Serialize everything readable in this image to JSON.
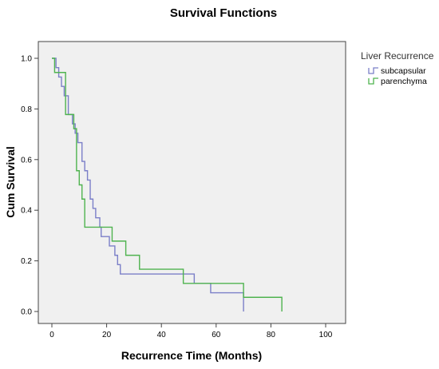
{
  "chart_data": {
    "type": "line",
    "title": "Survival Functions",
    "xlabel": "Recurrence Time (Months)",
    "ylabel": "Cum Survival",
    "xlim": [
      0,
      100
    ],
    "ylim": [
      0,
      1.0
    ],
    "x_ticks": [
      "0",
      "20",
      "40",
      "60",
      "80",
      "100"
    ],
    "y_ticks": [
      "0.0",
      "0.2",
      "0.4",
      "0.6",
      "0.8",
      "1.0"
    ],
    "x_tick_values": [
      0,
      20,
      40,
      60,
      80,
      100
    ],
    "y_tick_values": [
      0,
      0.2,
      0.4,
      0.6,
      0.8,
      1.0
    ],
    "legend": {
      "title": "Liver Recurrence",
      "placement": "outside-right"
    },
    "plot_background": "#f0f0f0",
    "grid": false,
    "series": [
      {
        "name": "subcapsular",
        "color": "#7b7fc8",
        "x": [
          0,
          1.5,
          2.5,
          3.5,
          4.5,
          6,
          7.5,
          8.5,
          9.5,
          11,
          12,
          13,
          14,
          15,
          16,
          17.5,
          18,
          21,
          23,
          24,
          25,
          48,
          52,
          56,
          58,
          70,
          70
        ],
        "y": [
          1.0,
          0.963,
          0.926,
          0.889,
          0.852,
          0.778,
          0.741,
          0.704,
          0.667,
          0.593,
          0.556,
          0.519,
          0.444,
          0.407,
          0.37,
          0.333,
          0.296,
          0.259,
          0.222,
          0.185,
          0.148,
          0.148,
          0.111,
          0.111,
          0.074,
          0.037,
          0.0
        ]
      },
      {
        "name": "parenchyma",
        "color": "#4fb34f",
        "x": [
          0,
          1,
          5,
          8,
          9,
          10,
          11,
          12,
          20,
          22,
          24,
          27,
          32,
          48,
          60,
          70,
          84,
          84
        ],
        "y": [
          1.0,
          0.944,
          0.778,
          0.722,
          0.556,
          0.5,
          0.444,
          0.333,
          0.333,
          0.278,
          0.278,
          0.222,
          0.167,
          0.111,
          0.111,
          0.056,
          0.056,
          0.0
        ]
      }
    ]
  }
}
